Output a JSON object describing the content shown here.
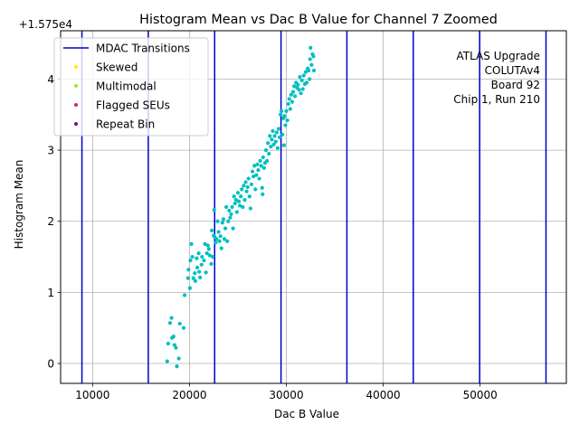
{
  "chart_data": {
    "type": "scatter",
    "title": "Histogram Mean vs Dac B Value for Channel 7 Zoomed",
    "xlabel": "Dac B Value",
    "ylabel": "Histogram Mean",
    "offset_text": "+1.575e4",
    "xlim": [
      6700,
      58900
    ],
    "ylim": [
      -0.28,
      4.68
    ],
    "x_ticks": [
      10000,
      20000,
      30000,
      40000,
      50000
    ],
    "x_tick_labels": [
      "10000",
      "20000",
      "30000",
      "40000",
      "50000"
    ],
    "y_ticks": [
      0,
      1,
      2,
      3,
      4
    ],
    "y_tick_labels": [
      "0",
      "1",
      "2",
      "3",
      "4"
    ],
    "grid": true,
    "legend_location": "upper-left",
    "legend": [
      {
        "label": "MDAC Transitions",
        "kind": "line",
        "color": "#0000cc"
      },
      {
        "label": "Skewed",
        "kind": "point",
        "color": "#ffee00"
      },
      {
        "label": "Multimodal",
        "kind": "point",
        "color": "#99ee22"
      },
      {
        "label": "Flagged SEUs",
        "kind": "point",
        "color": "#dd2244"
      },
      {
        "label": "Repeat Bin",
        "kind": "point",
        "color": "#771177"
      }
    ],
    "annotation": [
      "ATLAS Upgrade",
      "COLUTAv4",
      "Board 92",
      "Chip 1, Run 210"
    ],
    "mdac_transitions": [
      8900,
      15750,
      22600,
      29450,
      36250,
      43100,
      49950,
      56800
    ],
    "series": [
      {
        "name": "Data",
        "color": "#00bfbf",
        "points": [
          [
            17700,
            0.03
          ],
          [
            17800,
            0.28
          ],
          [
            18000,
            0.57
          ],
          [
            18150,
            0.64
          ],
          [
            18200,
            0.36
          ],
          [
            18350,
            0.38
          ],
          [
            18450,
            0.26
          ],
          [
            18600,
            0.22
          ],
          [
            18700,
            -0.04
          ],
          [
            18900,
            0.07
          ],
          [
            19000,
            0.56
          ],
          [
            19400,
            0.5
          ],
          [
            19500,
            0.96
          ],
          [
            19850,
            1.2
          ],
          [
            19900,
            1.32
          ],
          [
            20050,
            1.06
          ],
          [
            20100,
            1.45
          ],
          [
            20200,
            1.68
          ],
          [
            20300,
            1.5
          ],
          [
            20400,
            1.2
          ],
          [
            20550,
            1.27
          ],
          [
            20600,
            1.16
          ],
          [
            20750,
            1.48
          ],
          [
            20800,
            1.35
          ],
          [
            20950,
            1.55
          ],
          [
            21000,
            1.29
          ],
          [
            21100,
            1.21
          ],
          [
            21250,
            1.39
          ],
          [
            21300,
            1.5
          ],
          [
            21500,
            1.45
          ],
          [
            21600,
            1.68
          ],
          [
            21700,
            1.28
          ],
          [
            21800,
            1.55
          ],
          [
            21900,
            1.66
          ],
          [
            22000,
            1.61
          ],
          [
            22100,
            1.52
          ],
          [
            22250,
            1.4
          ],
          [
            22300,
            1.87
          ],
          [
            22400,
            1.5
          ],
          [
            22500,
            1.8
          ],
          [
            22550,
            2.16
          ],
          [
            22600,
            1.78
          ],
          [
            22700,
            1.7
          ],
          [
            22800,
            1.75
          ],
          [
            22900,
            2.0
          ],
          [
            23000,
            1.85
          ],
          [
            23100,
            1.72
          ],
          [
            23200,
            1.79
          ],
          [
            23300,
            1.62
          ],
          [
            23400,
            1.98
          ],
          [
            23500,
            2.03
          ],
          [
            23600,
            1.75
          ],
          [
            23700,
            1.9
          ],
          [
            23800,
            2.2
          ],
          [
            23900,
            1.72
          ],
          [
            24000,
            2.0
          ],
          [
            24100,
            2.15
          ],
          [
            24200,
            2.05
          ],
          [
            24300,
            2.1
          ],
          [
            24400,
            2.2
          ],
          [
            24500,
            1.9
          ],
          [
            24600,
            2.35
          ],
          [
            24700,
            2.25
          ],
          [
            24800,
            2.3
          ],
          [
            24900,
            2.13
          ],
          [
            25000,
            2.4
          ],
          [
            25100,
            2.28
          ],
          [
            25200,
            2.22
          ],
          [
            25300,
            2.35
          ],
          [
            25400,
            2.45
          ],
          [
            25500,
            2.2
          ],
          [
            25600,
            2.5
          ],
          [
            25700,
            2.3
          ],
          [
            25800,
            2.55
          ],
          [
            25900,
            2.42
          ],
          [
            26000,
            2.48
          ],
          [
            26100,
            2.6
          ],
          [
            26200,
            2.35
          ],
          [
            26300,
            2.18
          ],
          [
            26400,
            2.52
          ],
          [
            26500,
            2.7
          ],
          [
            26600,
            2.63
          ],
          [
            26700,
            2.78
          ],
          [
            26800,
            2.45
          ],
          [
            26900,
            2.65
          ],
          [
            27000,
            2.8
          ],
          [
            27100,
            2.72
          ],
          [
            27200,
            2.6
          ],
          [
            27300,
            2.85
          ],
          [
            27400,
            2.78
          ],
          [
            27500,
            2.47
          ],
          [
            27550,
            2.38
          ],
          [
            27600,
            2.9
          ],
          [
            27700,
            2.75
          ],
          [
            27800,
            2.82
          ],
          [
            27900,
            3.0
          ],
          [
            28000,
            2.85
          ],
          [
            28100,
            3.1
          ],
          [
            28200,
            2.95
          ],
          [
            28300,
            3.2
          ],
          [
            28400,
            3.05
          ],
          [
            28500,
            3.15
          ],
          [
            28600,
            3.27
          ],
          [
            28700,
            3.08
          ],
          [
            28800,
            3.2
          ],
          [
            28900,
            3.12
          ],
          [
            29000,
            3.25
          ],
          [
            29100,
            3.03
          ],
          [
            29200,
            3.3
          ],
          [
            29300,
            3.18
          ],
          [
            29400,
            3.5
          ],
          [
            29500,
            3.55
          ],
          [
            29600,
            3.22
          ],
          [
            29700,
            3.45
          ],
          [
            29750,
            3.07
          ],
          [
            29800,
            3.48
          ],
          [
            29900,
            3.35
          ],
          [
            30000,
            3.55
          ],
          [
            30100,
            3.42
          ],
          [
            30200,
            3.65
          ],
          [
            30300,
            3.72
          ],
          [
            30400,
            3.58
          ],
          [
            30500,
            3.78
          ],
          [
            30600,
            3.68
          ],
          [
            30700,
            3.82
          ],
          [
            30800,
            3.9
          ],
          [
            30900,
            3.76
          ],
          [
            31000,
            3.95
          ],
          [
            31100,
            3.88
          ],
          [
            31200,
            3.92
          ],
          [
            31300,
            3.85
          ],
          [
            31400,
            4.03
          ],
          [
            31500,
            3.8
          ],
          [
            31600,
            3.98
          ],
          [
            31700,
            3.86
          ],
          [
            31800,
            4.05
          ],
          [
            31900,
            3.93
          ],
          [
            32000,
            4.1
          ],
          [
            32100,
            3.95
          ],
          [
            32200,
            4.15
          ],
          [
            32300,
            4.12
          ],
          [
            32400,
            4.0
          ],
          [
            32450,
            4.28
          ],
          [
            32500,
            4.44
          ],
          [
            32600,
            4.2
          ],
          [
            32700,
            4.35
          ],
          [
            32800,
            4.32
          ],
          [
            32850,
            4.12
          ]
        ]
      }
    ]
  }
}
